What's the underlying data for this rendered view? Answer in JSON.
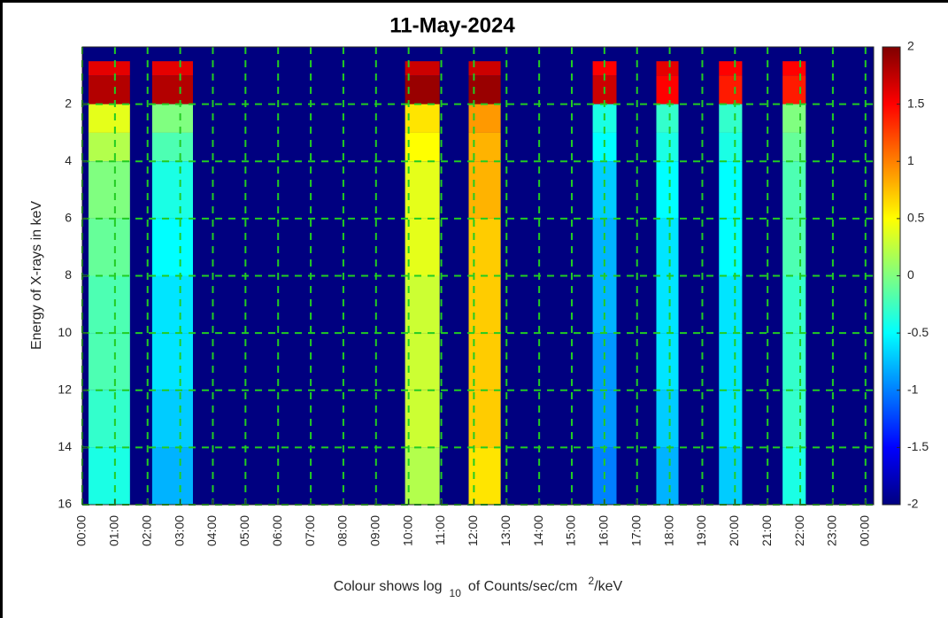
{
  "chart_data": {
    "type": "spectrogram",
    "title": "11-May-2024",
    "ylabel": "Energy of X-rays in keV",
    "xlabel": [
      "Colour shows log",
      "10",
      "of Counts/sec/cm",
      "2",
      "/keV"
    ],
    "xlim": [
      0,
      24.25
    ],
    "xticks": [
      {
        "value": 0,
        "label": "00:00"
      },
      {
        "value": 1,
        "label": "01:00"
      },
      {
        "value": 2,
        "label": "02:00"
      },
      {
        "value": 3,
        "label": "03:00"
      },
      {
        "value": 4,
        "label": "04:00"
      },
      {
        "value": 5,
        "label": "05:00"
      },
      {
        "value": 6,
        "label": "06:00"
      },
      {
        "value": 7,
        "label": "07:00"
      },
      {
        "value": 8,
        "label": "08:00"
      },
      {
        "value": 9,
        "label": "09:00"
      },
      {
        "value": 10,
        "label": "10:00"
      },
      {
        "value": 11,
        "label": "11:00"
      },
      {
        "value": 12,
        "label": "12:00"
      },
      {
        "value": 13,
        "label": "13:00"
      },
      {
        "value": 14,
        "label": "14:00"
      },
      {
        "value": 15,
        "label": "15:00"
      },
      {
        "value": 16,
        "label": "16:00"
      },
      {
        "value": 17,
        "label": "17:00"
      },
      {
        "value": 18,
        "label": "18:00"
      },
      {
        "value": 19,
        "label": "19:00"
      },
      {
        "value": 20,
        "label": "20:00"
      },
      {
        "value": 21,
        "label": "21:00"
      },
      {
        "value": 22,
        "label": "22:00"
      },
      {
        "value": 23,
        "label": "23:00"
      },
      {
        "value": 24,
        "label": "00:00"
      }
    ],
    "ylim": [
      0,
      16
    ],
    "yticks": [
      2,
      4,
      6,
      8,
      10,
      12,
      14,
      16
    ],
    "y_reversed": true,
    "grid": true,
    "grid_color": "#22cc22",
    "clim": [
      -2,
      2
    ],
    "cticks": [
      -2,
      -1.5,
      -1,
      -0.5,
      0,
      0.5,
      1,
      1.5,
      2
    ],
    "colormap": "jet",
    "energy_edges": [
      0.5,
      1,
      2,
      3,
      4,
      6,
      8,
      10,
      12,
      14,
      16
    ],
    "segments": [
      {
        "start": 0.19,
        "end": 1.46,
        "values": [
          1.6,
          1.8,
          0.4,
          0.2,
          0.0,
          -0.1,
          -0.2,
          -0.2,
          -0.3,
          -0.4
        ]
      },
      {
        "start": 2.14,
        "end": 3.39,
        "values": [
          1.6,
          1.8,
          0.0,
          -0.2,
          -0.4,
          -0.5,
          -0.6,
          -0.6,
          -0.7,
          -0.8
        ]
      },
      {
        "start": 9.89,
        "end": 10.95,
        "values": [
          1.7,
          1.9,
          0.6,
          0.5,
          0.4,
          0.4,
          0.3,
          0.3,
          0.3,
          0.2
        ]
      },
      {
        "start": 11.84,
        "end": 12.82,
        "values": [
          1.7,
          1.9,
          0.9,
          0.8,
          0.8,
          0.7,
          0.7,
          0.7,
          0.7,
          0.6
        ]
      },
      {
        "start": 15.64,
        "end": 16.37,
        "values": [
          1.5,
          1.7,
          -0.4,
          -0.5,
          -0.7,
          -0.8,
          -0.8,
          -0.9,
          -0.9,
          -1.0
        ]
      },
      {
        "start": 17.59,
        "end": 18.27,
        "values": [
          1.6,
          1.5,
          -0.3,
          -0.4,
          -0.5,
          -0.6,
          -0.6,
          -0.6,
          -0.7,
          -0.8
        ]
      },
      {
        "start": 19.51,
        "end": 20.22,
        "values": [
          1.5,
          1.4,
          -0.3,
          -0.4,
          -0.5,
          -0.5,
          -0.6,
          -0.6,
          -0.6,
          -0.7
        ]
      },
      {
        "start": 21.46,
        "end": 22.17,
        "values": [
          1.5,
          1.4,
          0.0,
          -0.1,
          -0.2,
          -0.2,
          -0.3,
          -0.3,
          -0.3,
          -0.4
        ]
      }
    ]
  }
}
